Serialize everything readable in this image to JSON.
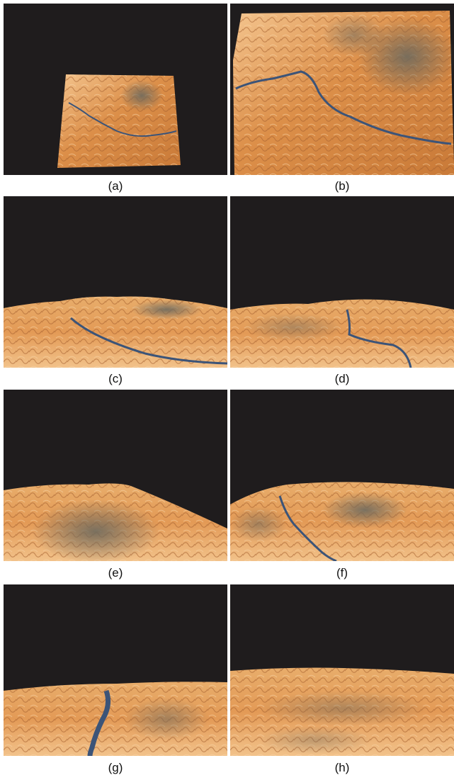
{
  "panels": [
    {
      "id": "a",
      "label": "(a)"
    },
    {
      "id": "b",
      "label": "(b)"
    },
    {
      "id": "c",
      "label": "(c)"
    },
    {
      "id": "d",
      "label": "(d)"
    },
    {
      "id": "e",
      "label": "(e)"
    },
    {
      "id": "f",
      "label": "(f)"
    },
    {
      "id": "g",
      "label": "(g)"
    },
    {
      "id": "h",
      "label": "(h)"
    }
  ],
  "colors": {
    "sky": "#1f1c1d",
    "terrain_light": "#f2c28a",
    "terrain_mid": "#d88a45",
    "terrain_dark": "#9a5a2c",
    "terrain_shadow": "#6e6a5e",
    "river": "#3c5478"
  }
}
